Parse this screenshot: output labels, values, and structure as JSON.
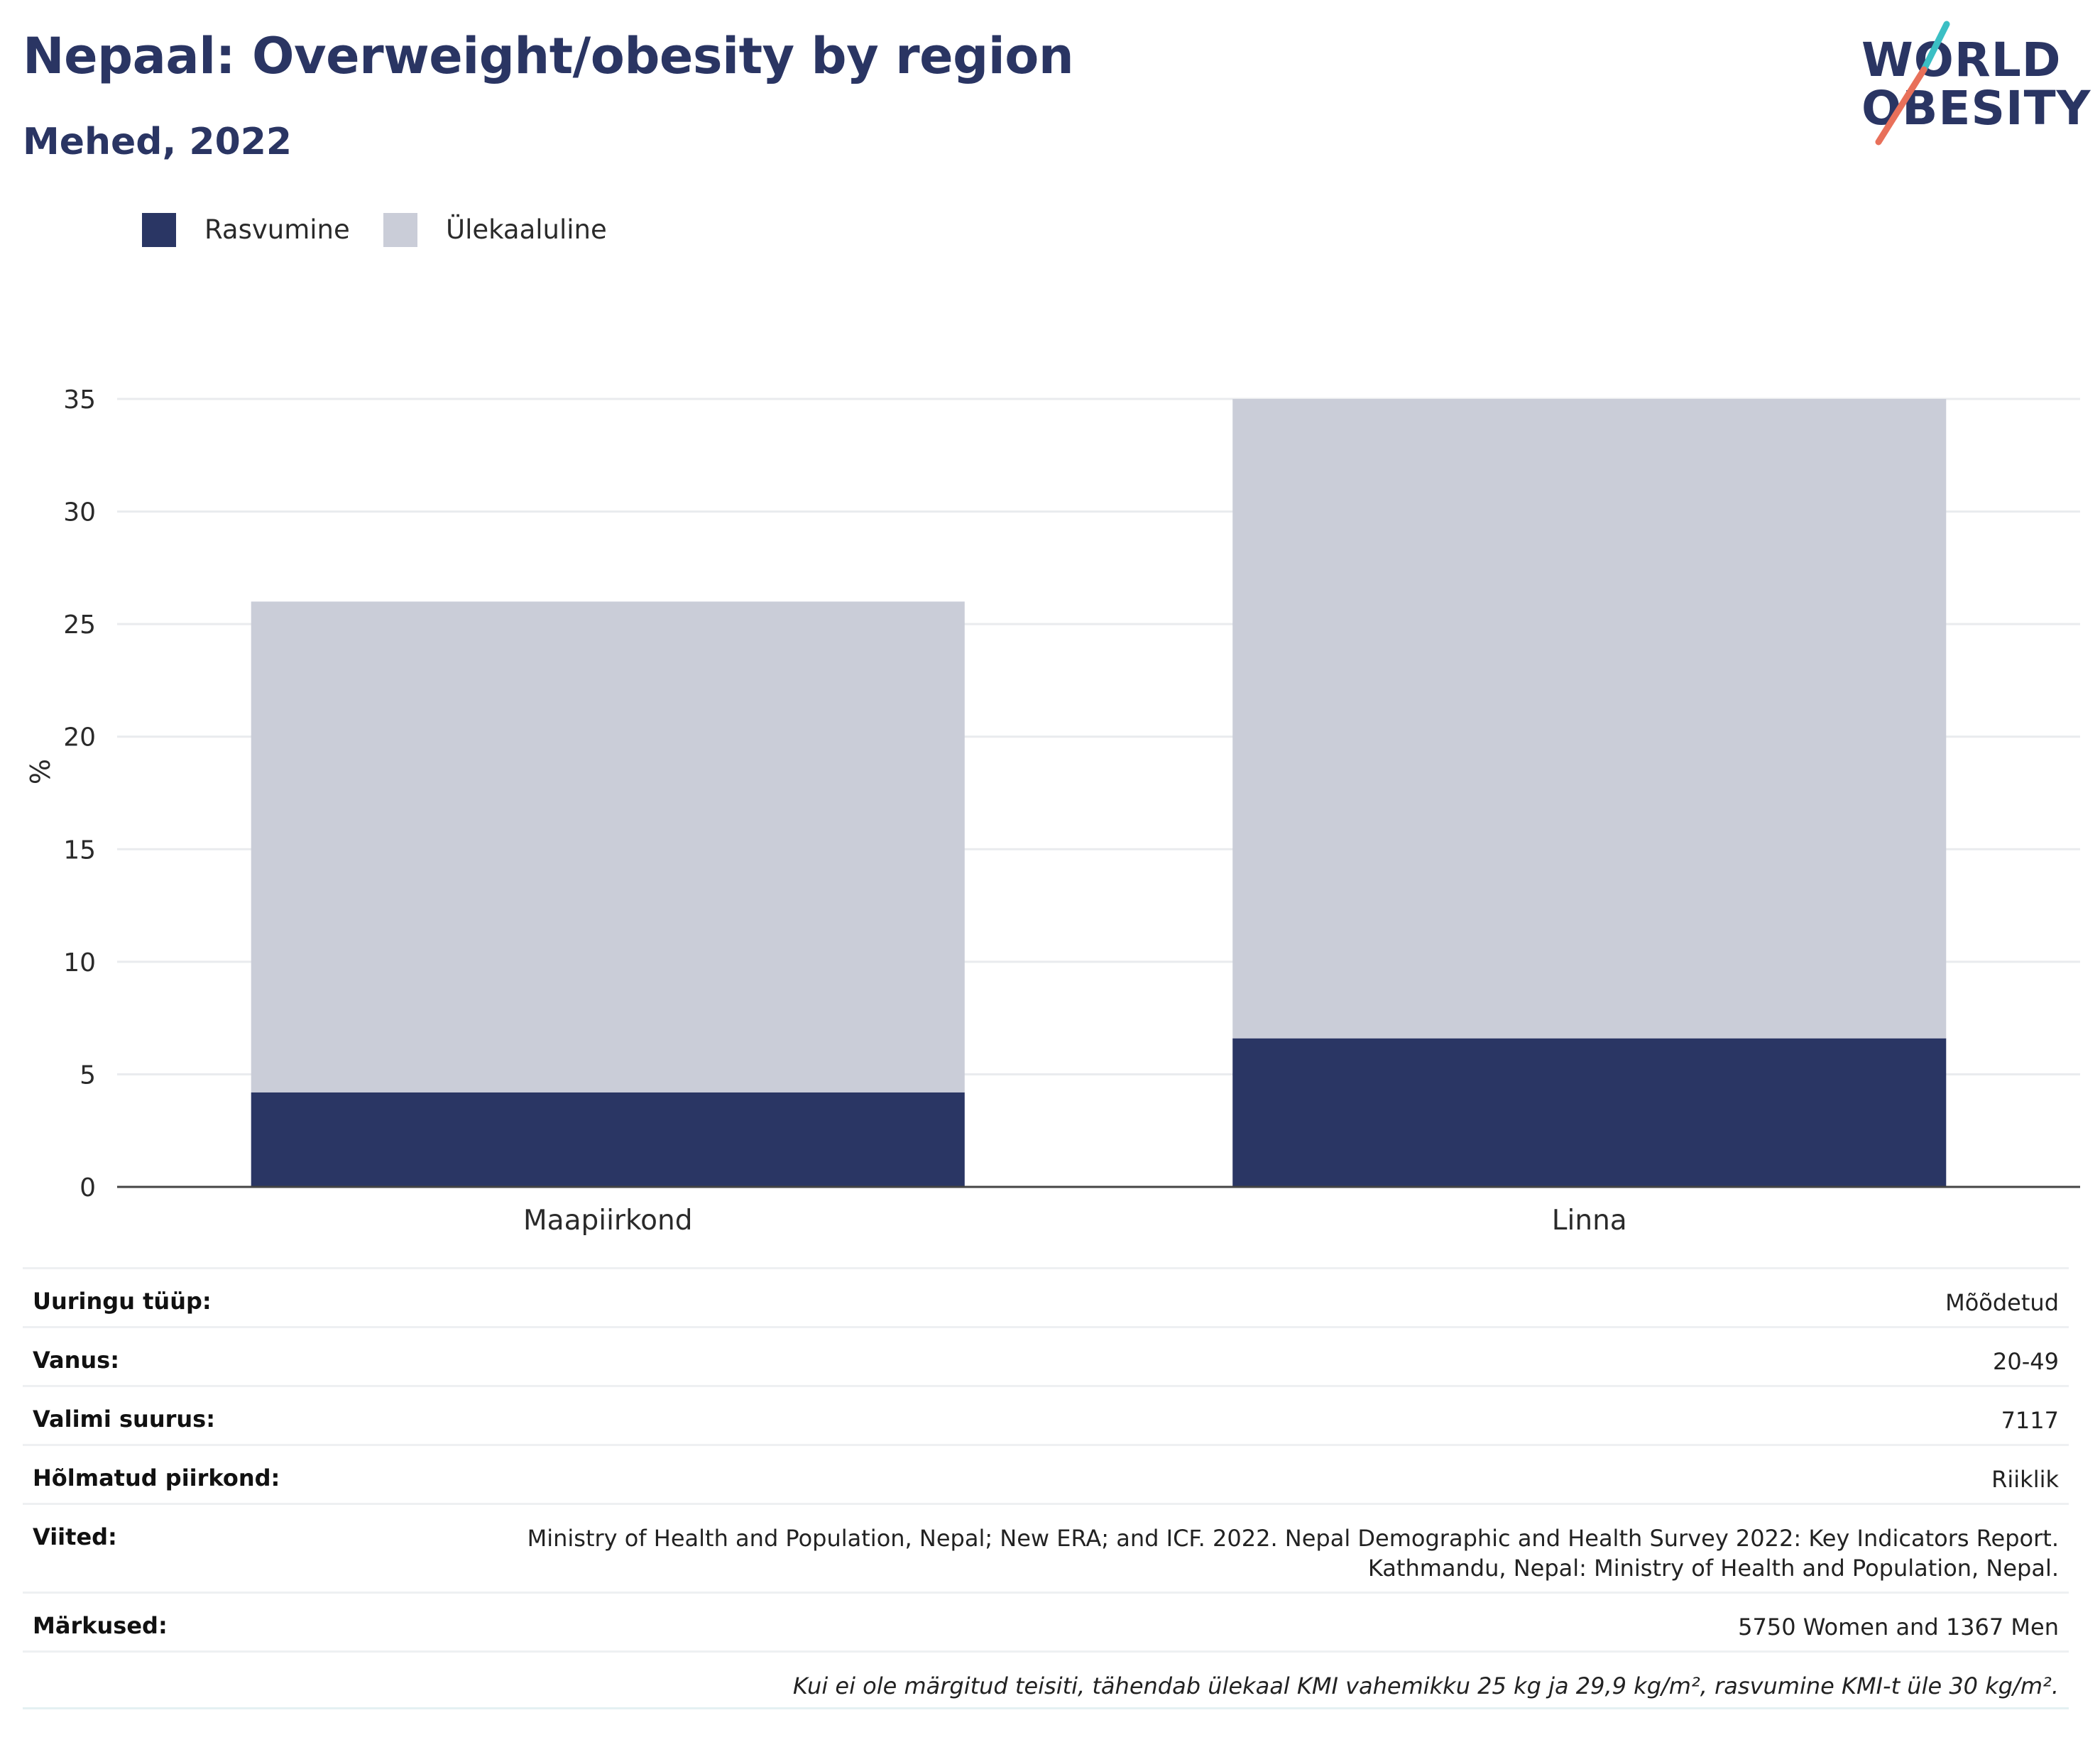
{
  "header": {
    "title": "Nepaal: Overweight/obesity by region",
    "subtitle": "Mehed, 2022"
  },
  "logo": {
    "line1": "WORLD",
    "line2": "OBESITY",
    "accent_teal": "#3bbfc4",
    "accent_coral": "#e8705a"
  },
  "colors": {
    "obesity": "#2a3664",
    "overweight": "#cacdd8",
    "text_dark": "#2a3563",
    "grid": "#e9ebee",
    "axis": "#444444"
  },
  "legend": {
    "items": [
      {
        "label": "Rasvumine",
        "color": "#2a3664"
      },
      {
        "label": "Ülekaaluline",
        "color": "#cacdd8"
      }
    ]
  },
  "chart_data": {
    "type": "bar",
    "stacked": true,
    "categories": [
      "Maapiirkond",
      "Linna"
    ],
    "series": [
      {
        "name": "Rasvumine",
        "values": [
          4.2,
          6.6
        ],
        "color": "#2a3664"
      },
      {
        "name": "Ülekaaluline",
        "values": [
          21.8,
          28.4
        ],
        "color": "#cacdd8"
      }
    ],
    "ylabel": "%",
    "ylim": [
      0,
      35
    ],
    "yticks": [
      0,
      5,
      10,
      15,
      20,
      25,
      30,
      35
    ],
    "grid": true,
    "legend_position": "top-left"
  },
  "meta": {
    "rows": [
      {
        "key": "Uuringu tüüp:",
        "value": "Mõõdetud"
      },
      {
        "key": "Vanus:",
        "value": "20-49"
      },
      {
        "key": "Valimi suurus:",
        "value": "7117"
      },
      {
        "key": "Hõlmatud piirkond:",
        "value": "Riiklik"
      },
      {
        "key": "Viited:",
        "value": "Ministry of Health and Population, Nepal; New ERA; and ICF. 2022. Nepal Demographic and Health Survey 2022: Key Indicators Report.",
        "value2": "Kathmandu, Nepal: Ministry of Health and Population, Nepal."
      },
      {
        "key": "Märkused:",
        "value": "5750 Women and 1367 Men"
      },
      {
        "key": "",
        "value": "Kui ei ole märgitud teisiti, tähendab ülekaal KMI vahemikku 25 kg ja 29,9 kg/m², rasvumine KMI-t üle 30 kg/m²."
      }
    ]
  }
}
